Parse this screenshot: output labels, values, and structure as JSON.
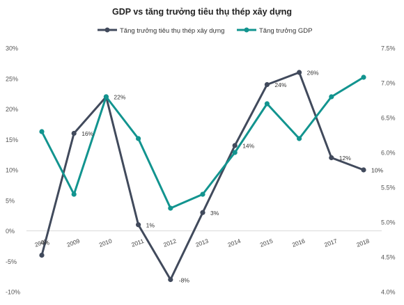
{
  "chart_data": {
    "type": "line",
    "title": "GDP vs tăng trưởng tiêu thụ thép xây dựng",
    "categories": [
      "2008",
      "2009",
      "2010",
      "2011",
      "2012",
      "2013",
      "2014",
      "2015",
      "2016",
      "2017",
      "2018"
    ],
    "series": [
      {
        "name": "Tăng trưởng tiêu thụ thép xây dựng",
        "axis": "left",
        "color": "#414a5c",
        "values": [
          -4,
          16,
          22,
          1,
          -8,
          3,
          14,
          24,
          26,
          12,
          10
        ],
        "labels": [
          "-4%",
          "16%",
          "22%",
          "1%",
          "-8%",
          "3%",
          "14%",
          "24%",
          "26%",
          "12%",
          "10%"
        ]
      },
      {
        "name": "Tăng trưởng GDP",
        "axis": "right",
        "color": "#12948f",
        "values": [
          6.3,
          5.4,
          6.8,
          6.2,
          5.2,
          5.4,
          6.0,
          6.7,
          6.2,
          6.8,
          7.08
        ]
      }
    ],
    "y_left": {
      "min": -10,
      "max": 30,
      "ticks": [
        "-10%",
        "-5%",
        "0%",
        "5%",
        "10%",
        "15%",
        "20%",
        "25%",
        "30%"
      ]
    },
    "y_right": {
      "min": 4.0,
      "max": 7.5,
      "ticks": [
        "4.0%",
        "4.5%",
        "5.0%",
        "5.5%",
        "6.0%",
        "6.5%",
        "7.0%",
        "7.5%"
      ]
    },
    "legend_position": "top",
    "grid": false
  }
}
